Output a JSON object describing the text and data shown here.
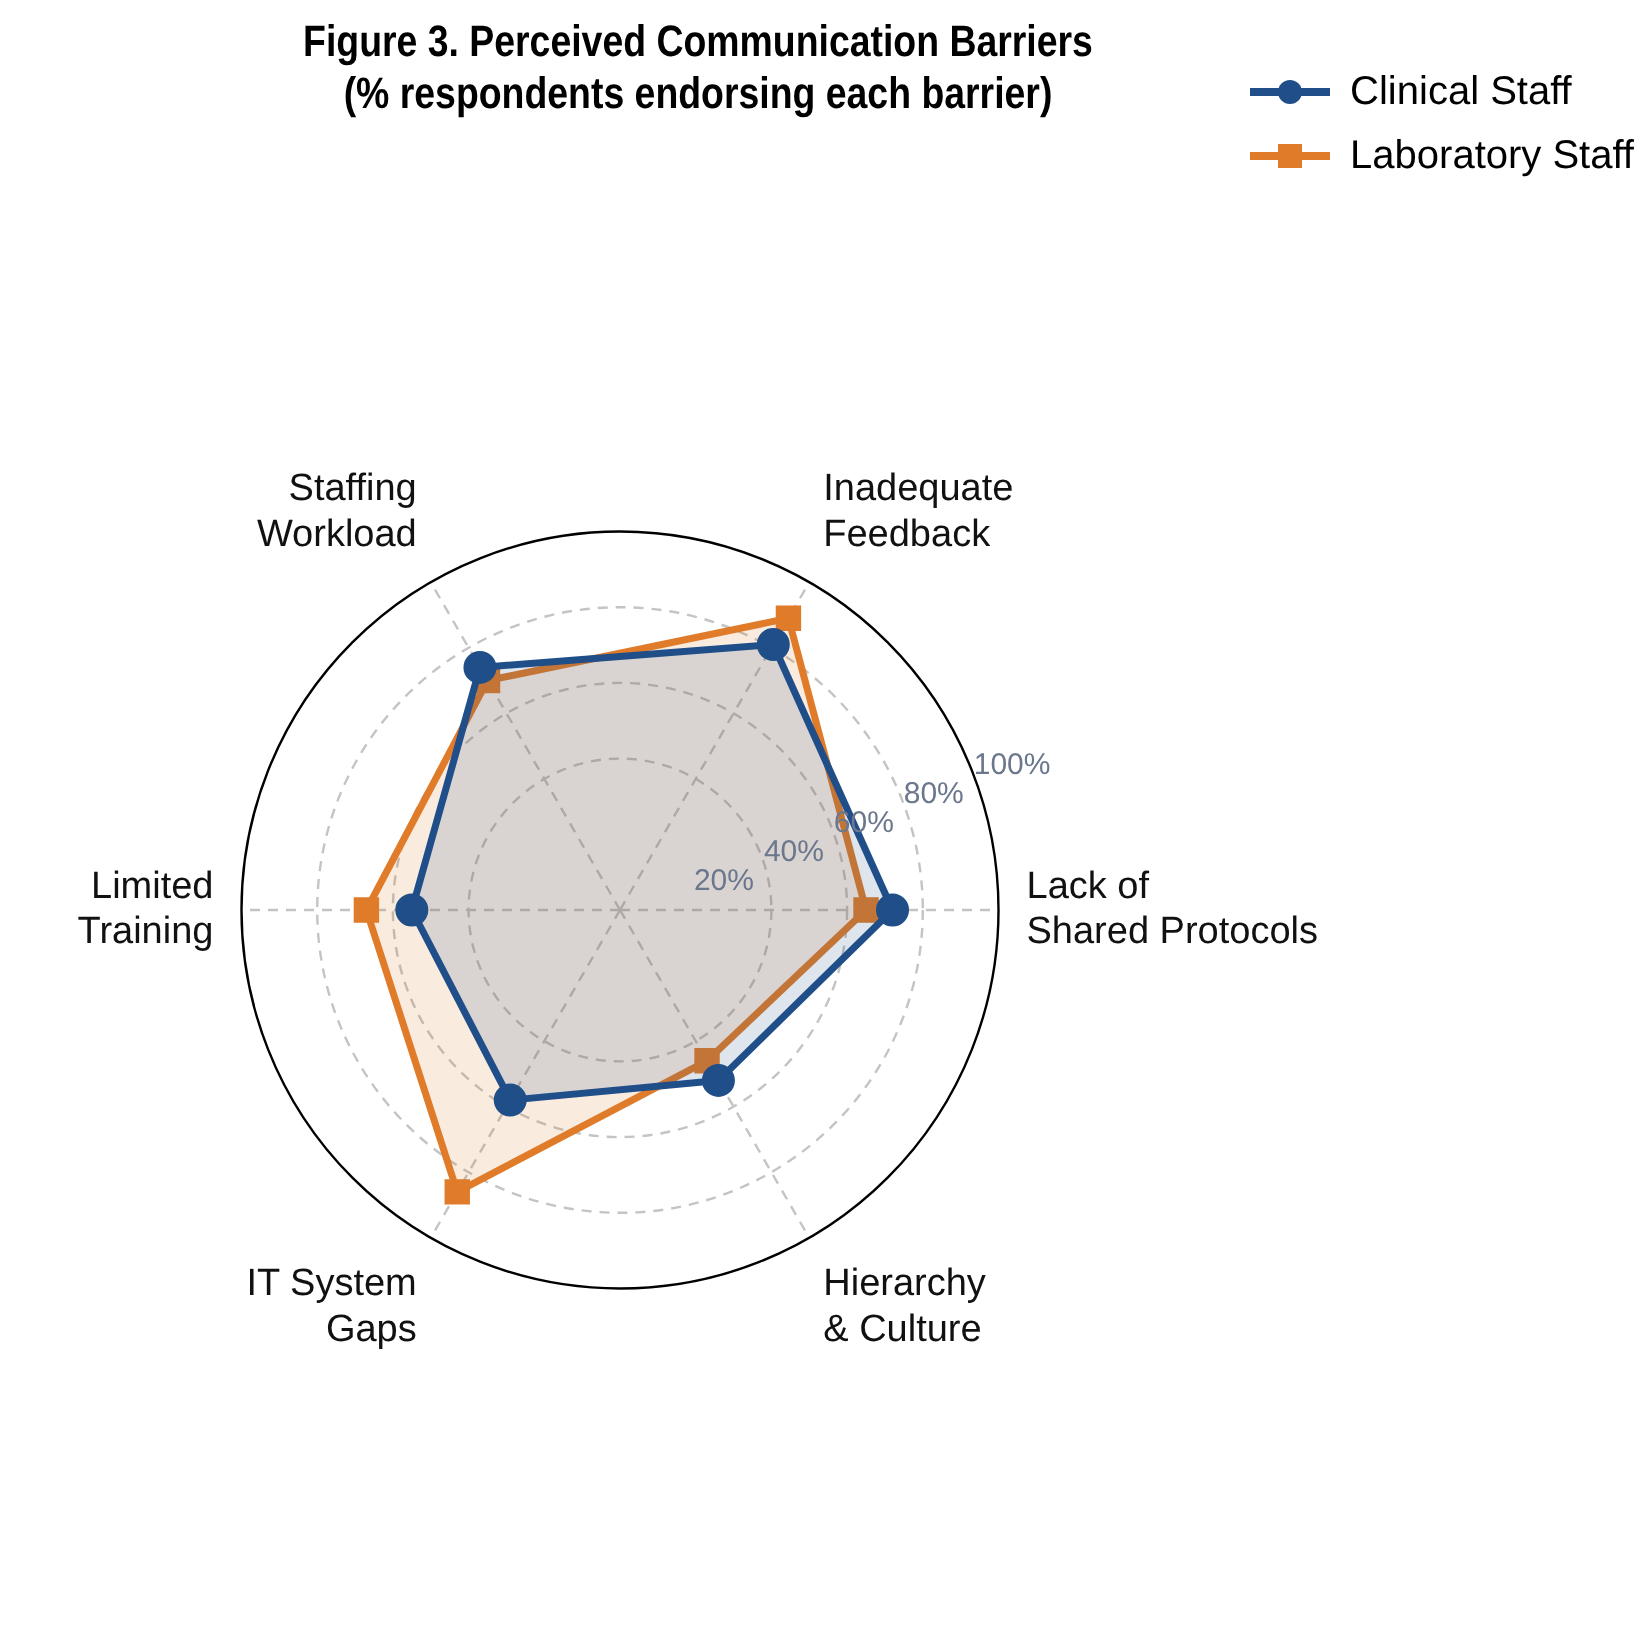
{
  "chart_data": {
    "type": "radar",
    "title": "Figure 3. Perceived Communication Barriers\n(% respondents endorsing each barrier)",
    "categories": [
      "Inadequate\nFeedback",
      "Lack of\nShared Protocols",
      "Hierarchy\n& Culture",
      "IT System\nGaps",
      "Limited\nTraining",
      "Staffing\nWorkload"
    ],
    "series": [
      {
        "name": "Clinical Staff",
        "color": "#1f4e89",
        "marker": "circle",
        "values": [
          81,
          72,
          52,
          58,
          55,
          74
        ]
      },
      {
        "name": "Laboratory Staff",
        "color": "#e07b2a",
        "marker": "square",
        "values": [
          89,
          65,
          46,
          86,
          67,
          70
        ]
      }
    ],
    "ylim": [
      0,
      100
    ],
    "yticks": [
      {
        "value": 20,
        "label": "20%"
      },
      {
        "value": 40,
        "label": "40%"
      },
      {
        "value": 60,
        "label": "60%"
      },
      {
        "value": 80,
        "label": "80%"
      },
      {
        "value": 100,
        "label": "100%"
      }
    ],
    "grid": true,
    "legend": "top right",
    "line_style": "solid"
  }
}
